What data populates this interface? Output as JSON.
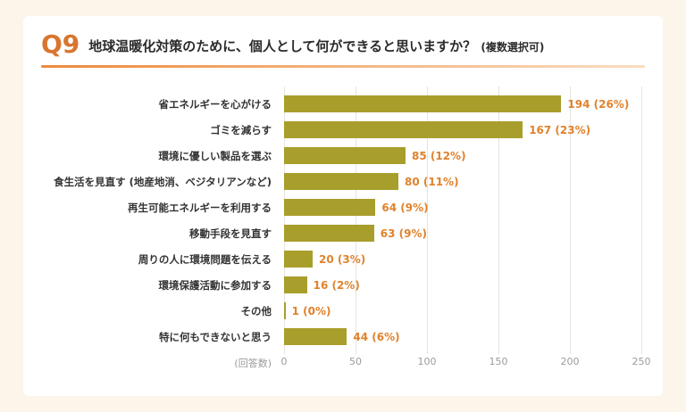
{
  "header": {
    "q_label": "Q9",
    "title": "地球温暖化対策のために、個人として何ができると思いますか？",
    "note": "(複数選択可)"
  },
  "colors": {
    "background": "#fcf5e9",
    "card": "#ffffff",
    "accent_orange": "#d9752e",
    "underline_from": "#ed8a3c",
    "underline_to": "#f9ddc0",
    "bar": "#a89e2c",
    "value_label": "#e0822c",
    "axis_text": "#9b9b9b",
    "label_text": "#333333"
  },
  "chart_data": {
    "type": "bar",
    "orientation": "horizontal",
    "title": "Q9 地球温暖化対策のために、個人として何ができると思いますか？(複数選択可)",
    "categories": [
      "省エネルギーを心がける",
      "ゴミを減らす",
      "環境に優しい製品を選ぶ",
      "食生活を見直す (地産地消、ベジタリアンなど)",
      "再生可能エネルギーを利用する",
      "移動手段を見直す",
      "周りの人に環境問題を伝える",
      "環境保護活動に参加する",
      "その他",
      "特に何もできないと思う"
    ],
    "values": [
      194,
      167,
      85,
      80,
      64,
      63,
      20,
      16,
      1,
      44
    ],
    "value_labels": [
      "194 (26%)",
      "167 (23%)",
      "85 (12%)",
      "80 (11%)",
      "64 (9%)",
      "63 (9%)",
      "20 (3%)",
      "16 (2%)",
      "1 (0%)",
      "44 (6%)"
    ],
    "xlabel": "(回答数)",
    "xlim": [
      0,
      250
    ],
    "xticks": [
      0,
      50,
      100,
      150,
      200,
      250
    ],
    "grid": true,
    "legend": false
  }
}
